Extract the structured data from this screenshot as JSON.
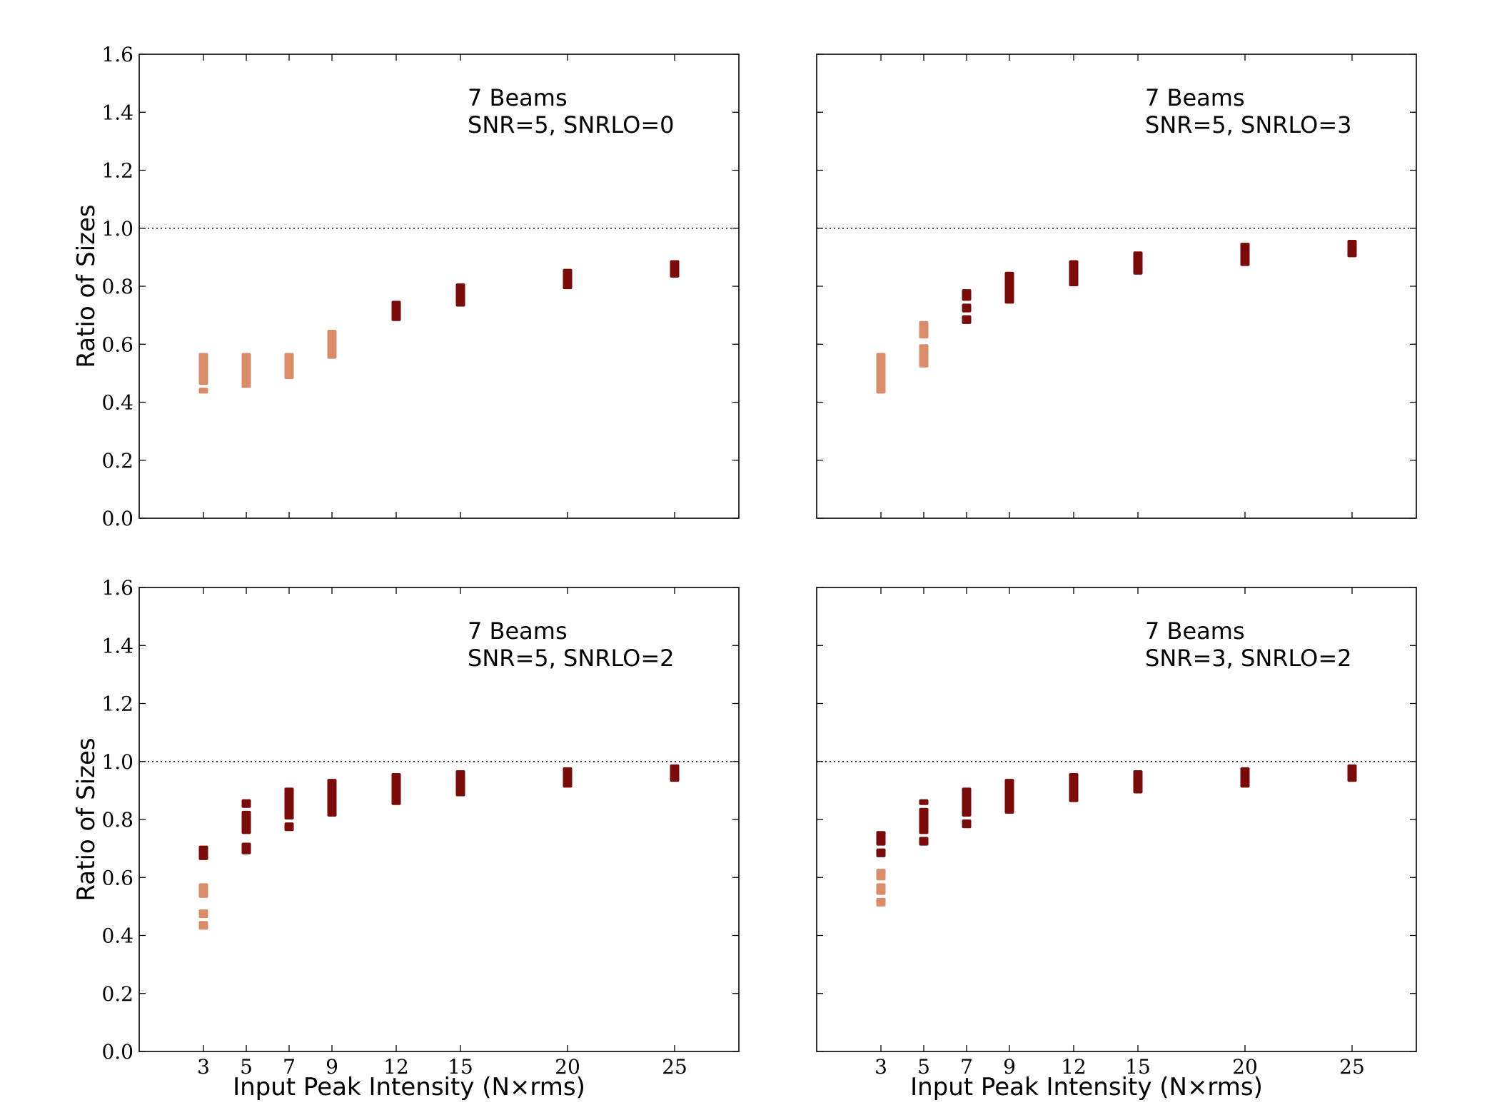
{
  "chart_data": [
    {
      "type": "scatter",
      "annotation": [
        "7 Beams",
        "SNR=5, SNRLO=0"
      ],
      "ylabel": "Ratio of Sizes",
      "xlabel": "",
      "ylim": [
        0.0,
        1.6
      ],
      "xlim": [
        0,
        28
      ],
      "yticks": [
        "0.0",
        "0.2",
        "0.4",
        "0.6",
        "0.8",
        "1.0",
        "1.2",
        "1.4",
        "1.6"
      ],
      "xticks": [],
      "reference_line": 1.0,
      "colors": {
        "low": "#d98c6a",
        "high": "#7a0b0b"
      },
      "series": [
        {
          "x": 3,
          "group": "low",
          "segments": [
            [
              0.43,
              0.45
            ],
            [
              0.46,
              0.57
            ]
          ]
        },
        {
          "x": 5,
          "group": "low",
          "segments": [
            [
              0.45,
              0.57
            ]
          ]
        },
        {
          "x": 7,
          "group": "low",
          "segments": [
            [
              0.48,
              0.57
            ]
          ]
        },
        {
          "x": 9,
          "group": "low",
          "segments": [
            [
              0.55,
              0.65
            ]
          ]
        },
        {
          "x": 12,
          "group": "high",
          "segments": [
            [
              0.68,
              0.75
            ]
          ]
        },
        {
          "x": 15,
          "group": "high",
          "segments": [
            [
              0.73,
              0.81
            ]
          ]
        },
        {
          "x": 20,
          "group": "high",
          "segments": [
            [
              0.79,
              0.86
            ]
          ]
        },
        {
          "x": 25,
          "group": "high",
          "segments": [
            [
              0.83,
              0.89
            ]
          ]
        }
      ]
    },
    {
      "type": "scatter",
      "annotation": [
        "7 Beams",
        "SNR=5, SNRLO=3"
      ],
      "ylabel": "",
      "xlabel": "",
      "ylim": [
        0.0,
        1.6
      ],
      "xlim": [
        0,
        28
      ],
      "yticks": [],
      "xticks": [],
      "reference_line": 1.0,
      "colors": {
        "low": "#d98c6a",
        "high": "#7a0b0b"
      },
      "series": [
        {
          "x": 3,
          "group": "low",
          "segments": [
            [
              0.43,
              0.57
            ]
          ]
        },
        {
          "x": 5,
          "group": "low",
          "segments": [
            [
              0.52,
              0.6
            ],
            [
              0.62,
              0.68
            ]
          ]
        },
        {
          "x": 7,
          "group": "high",
          "segments": [
            [
              0.67,
              0.7
            ],
            [
              0.71,
              0.74
            ],
            [
              0.75,
              0.79
            ]
          ]
        },
        {
          "x": 9,
          "group": "high",
          "segments": [
            [
              0.74,
              0.85
            ]
          ]
        },
        {
          "x": 12,
          "group": "high",
          "segments": [
            [
              0.8,
              0.89
            ]
          ]
        },
        {
          "x": 15,
          "group": "high",
          "segments": [
            [
              0.84,
              0.92
            ]
          ]
        },
        {
          "x": 20,
          "group": "high",
          "segments": [
            [
              0.87,
              0.95
            ]
          ]
        },
        {
          "x": 25,
          "group": "high",
          "segments": [
            [
              0.9,
              0.96
            ]
          ]
        }
      ]
    },
    {
      "type": "scatter",
      "annotation": [
        "7 Beams",
        "SNR=5, SNRLO=2"
      ],
      "ylabel": "Ratio of Sizes",
      "xlabel": "Input Peak Intensity (N×rms)",
      "ylim": [
        0.0,
        1.6
      ],
      "xlim": [
        0,
        28
      ],
      "yticks": [
        "0.0",
        "0.2",
        "0.4",
        "0.6",
        "0.8",
        "1.0",
        "1.2",
        "1.4",
        "1.6"
      ],
      "xticks": [
        "3",
        "5",
        "7",
        "9",
        "12",
        "15",
        "20",
        "25"
      ],
      "reference_line": 1.0,
      "colors": {
        "low": "#d98c6a",
        "high": "#7a0b0b"
      },
      "series": [
        {
          "x": 3,
          "group": "low",
          "segments": [
            [
              0.42,
              0.45
            ],
            [
              0.46,
              0.49
            ],
            [
              0.53,
              0.58
            ]
          ]
        },
        {
          "x": 3,
          "group": "high",
          "segments": [
            [
              0.66,
              0.71
            ]
          ]
        },
        {
          "x": 5,
          "group": "high",
          "segments": [
            [
              0.68,
              0.72
            ],
            [
              0.75,
              0.83
            ],
            [
              0.84,
              0.87
            ]
          ]
        },
        {
          "x": 7,
          "group": "high",
          "segments": [
            [
              0.76,
              0.79
            ],
            [
              0.8,
              0.91
            ]
          ]
        },
        {
          "x": 9,
          "group": "high",
          "segments": [
            [
              0.81,
              0.94
            ]
          ]
        },
        {
          "x": 12,
          "group": "high",
          "segments": [
            [
              0.85,
              0.96
            ]
          ]
        },
        {
          "x": 15,
          "group": "high",
          "segments": [
            [
              0.88,
              0.97
            ]
          ]
        },
        {
          "x": 20,
          "group": "high",
          "segments": [
            [
              0.91,
              0.98
            ]
          ]
        },
        {
          "x": 25,
          "group": "high",
          "segments": [
            [
              0.93,
              0.99
            ]
          ]
        }
      ]
    },
    {
      "type": "scatter",
      "annotation": [
        "7 Beams",
        "SNR=3, SNRLO=2"
      ],
      "ylabel": "",
      "xlabel": "Input Peak Intensity (N×rms)",
      "ylim": [
        0.0,
        1.6
      ],
      "xlim": [
        0,
        28
      ],
      "yticks": [],
      "xticks": [
        "3",
        "5",
        "7",
        "9",
        "12",
        "15",
        "20",
        "25"
      ],
      "reference_line": 1.0,
      "colors": {
        "low": "#d98c6a",
        "high": "#7a0b0b"
      },
      "series": [
        {
          "x": 3,
          "group": "low",
          "segments": [
            [
              0.5,
              0.53
            ],
            [
              0.54,
              0.58
            ],
            [
              0.59,
              0.63
            ]
          ]
        },
        {
          "x": 3,
          "group": "high",
          "segments": [
            [
              0.67,
              0.7
            ],
            [
              0.71,
              0.76
            ]
          ]
        },
        {
          "x": 5,
          "group": "high",
          "segments": [
            [
              0.71,
              0.74
            ],
            [
              0.75,
              0.84
            ],
            [
              0.85,
              0.87
            ]
          ]
        },
        {
          "x": 7,
          "group": "high",
          "segments": [
            [
              0.77,
              0.8
            ],
            [
              0.81,
              0.91
            ]
          ]
        },
        {
          "x": 9,
          "group": "high",
          "segments": [
            [
              0.82,
              0.94
            ]
          ]
        },
        {
          "x": 12,
          "group": "high",
          "segments": [
            [
              0.86,
              0.96
            ]
          ]
        },
        {
          "x": 15,
          "group": "high",
          "segments": [
            [
              0.89,
              0.97
            ]
          ]
        },
        {
          "x": 20,
          "group": "high",
          "segments": [
            [
              0.91,
              0.98
            ]
          ]
        },
        {
          "x": 25,
          "group": "high",
          "segments": [
            [
              0.93,
              0.99
            ]
          ]
        }
      ]
    }
  ]
}
